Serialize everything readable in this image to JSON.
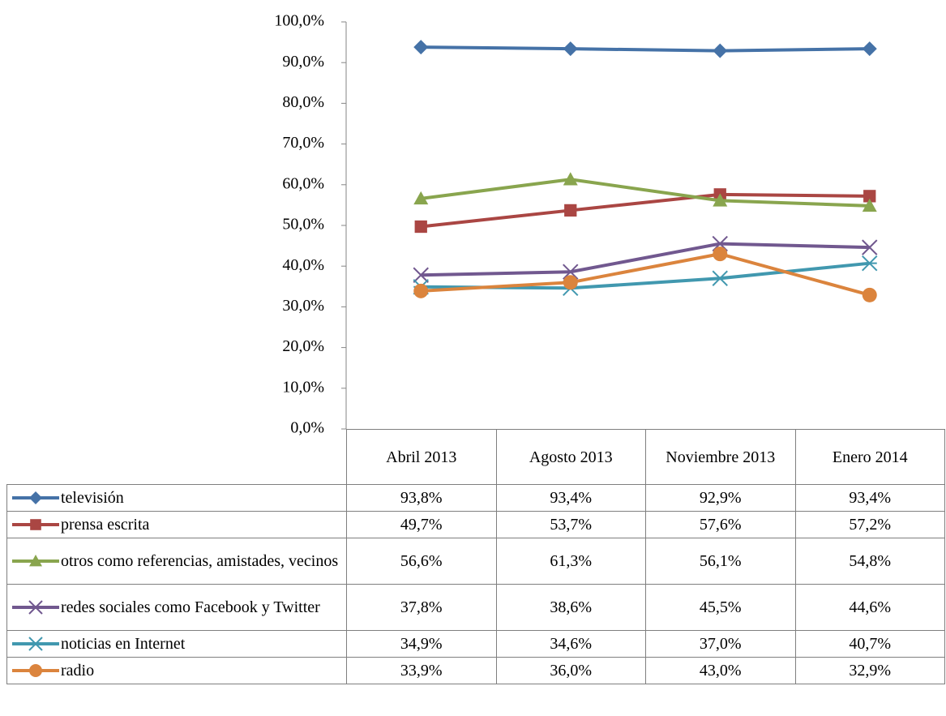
{
  "chart_data": {
    "type": "line",
    "categories": [
      "Abril 2013",
      "Agosto 2013",
      "Noviembre 2013",
      "Enero 2014"
    ],
    "ylim": [
      0,
      100
    ],
    "yticks": [
      {
        "value": 0,
        "label": "0,0%"
      },
      {
        "value": 10,
        "label": "10,0%"
      },
      {
        "value": 20,
        "label": "20,0%"
      },
      {
        "value": 30,
        "label": "30,0%"
      },
      {
        "value": 40,
        "label": "40,0%"
      },
      {
        "value": 50,
        "label": "50,0%"
      },
      {
        "value": 60,
        "label": "60,0%"
      },
      {
        "value": 70,
        "label": "70,0%"
      },
      {
        "value": 80,
        "label": "80,0%"
      },
      {
        "value": 90,
        "label": "90,0%"
      },
      {
        "value": 100,
        "label": "100,0%"
      }
    ],
    "grid": false,
    "data_table": true,
    "series": [
      {
        "name": "televisión",
        "color": "#4572a7",
        "marker": "diamond",
        "values": [
          93.8,
          93.4,
          92.9,
          93.4
        ],
        "value_labels": [
          "93,8%",
          "93,4%",
          "92,9%",
          "93,4%"
        ]
      },
      {
        "name": "prensa escrita",
        "color": "#aa4643",
        "marker": "square",
        "values": [
          49.7,
          53.7,
          57.6,
          57.2
        ],
        "value_labels": [
          "49,7%",
          "53,7%",
          "57,6%",
          "57,2%"
        ]
      },
      {
        "name": "otros como referencias, amistades, vecinos",
        "color": "#89a54e",
        "marker": "triangle",
        "values": [
          56.6,
          61.3,
          56.1,
          54.8
        ],
        "value_labels": [
          "56,6%",
          "61,3%",
          "56,1%",
          "54,8%"
        ]
      },
      {
        "name": "redes sociales como Facebook y Twitter",
        "color": "#71588f",
        "marker": "x",
        "values": [
          37.8,
          38.6,
          45.5,
          44.6
        ],
        "value_labels": [
          "37,8%",
          "38,6%",
          "45,5%",
          "44,6%"
        ]
      },
      {
        "name": "noticias en Internet",
        "color": "#4198af",
        "marker": "star",
        "values": [
          34.9,
          34.6,
          37.0,
          40.7
        ],
        "value_labels": [
          "34,9%",
          "34,6%",
          "37,0%",
          "40,7%"
        ]
      },
      {
        "name": "radio",
        "color": "#db843d",
        "marker": "circle",
        "values": [
          33.9,
          36.0,
          43.0,
          32.9
        ],
        "value_labels": [
          "33,9%",
          "36,0%",
          "43,0%",
          "32,9%"
        ]
      }
    ]
  }
}
